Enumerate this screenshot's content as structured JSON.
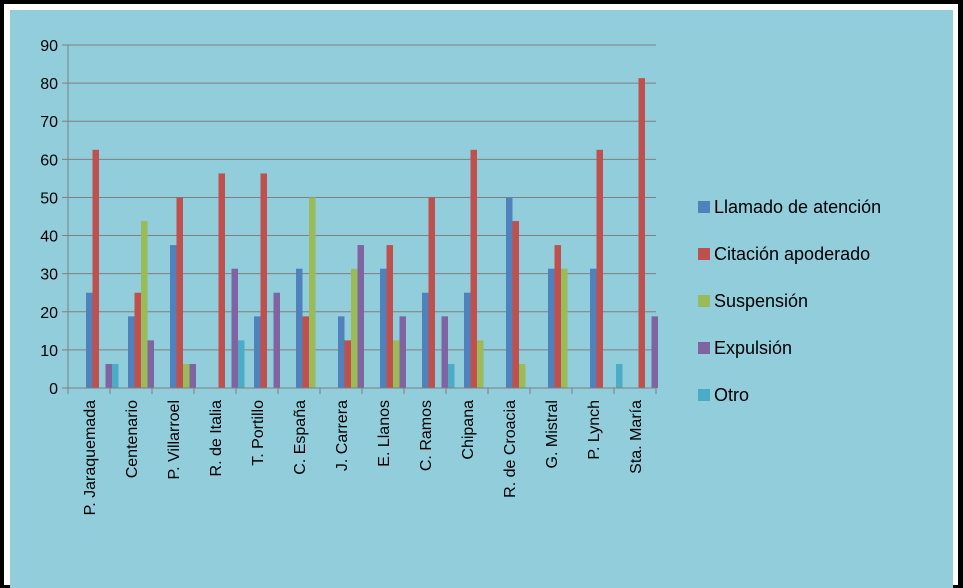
{
  "chart_data": {
    "type": "bar",
    "title": "",
    "xlabel": "",
    "ylabel": "",
    "ylim": [
      0,
      90
    ],
    "yticks": [
      0,
      10,
      20,
      30,
      40,
      50,
      60,
      70,
      80,
      90
    ],
    "grid": true,
    "legend_position": "right",
    "categories": [
      "P. Jaraquemada",
      "Centenario",
      "P. Villarroel",
      "R. de Italia",
      "T. Portillo",
      "C. España",
      "J. Carrera",
      "E. Llanos",
      "C. Ramos",
      "Chipana",
      "R. de Croacia",
      "G. Mistral",
      "P. Lynch",
      "Sta. María"
    ],
    "series": [
      {
        "name": "Llamado de atención",
        "color": "#4f81bd",
        "values": [
          25,
          18.8,
          37.5,
          0,
          18.8,
          31.3,
          18.8,
          31.3,
          25,
          25,
          50,
          31.3,
          31.3,
          0
        ]
      },
      {
        "name": "Citación apoderado",
        "color": "#c0504d",
        "values": [
          62.5,
          25,
          50,
          56.3,
          56.3,
          18.8,
          12.5,
          37.5,
          50,
          62.5,
          43.8,
          37.5,
          62.5,
          81.3
        ]
      },
      {
        "name": "Suspensión",
        "color": "#9bbb59",
        "values": [
          0,
          43.8,
          6.3,
          0,
          0,
          50,
          31.3,
          12.5,
          0,
          12.5,
          6.3,
          31.3,
          0,
          0
        ]
      },
      {
        "name": "Expulsión",
        "color": "#8064a2",
        "values": [
          6.3,
          12.5,
          6.3,
          31.3,
          25,
          0,
          37.5,
          18.8,
          18.8,
          0,
          0,
          0,
          0,
          18.8
        ]
      },
      {
        "name": "Otro",
        "color": "#4bacc6",
        "values": [
          6.3,
          0,
          0,
          12.5,
          0,
          0,
          0,
          0,
          6.3,
          0,
          0,
          0,
          6.3,
          0
        ]
      }
    ]
  }
}
